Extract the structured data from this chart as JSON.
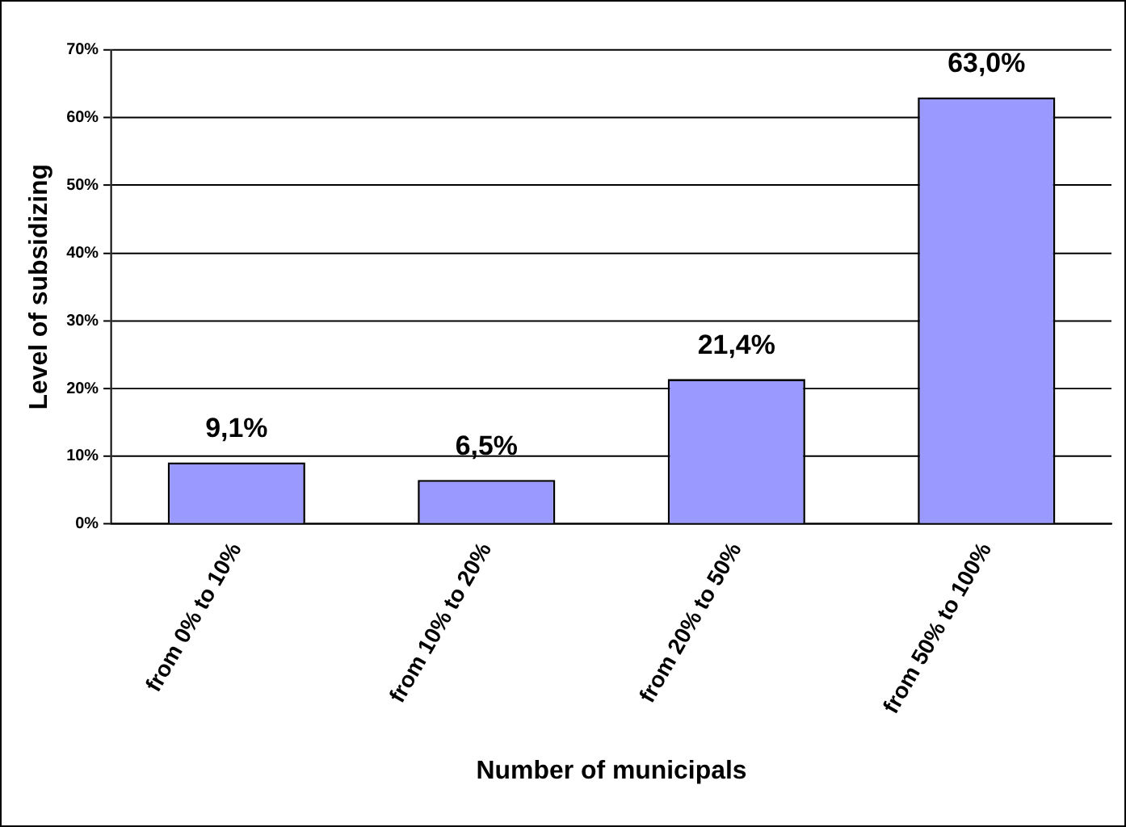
{
  "chart_data": {
    "type": "bar",
    "xlabel": "Number of municipals",
    "ylabel": "Level of subsidizing",
    "categories": [
      "from 0% to 10%",
      "from 10% to 20%",
      "from 20% to 50%",
      "from 50% to 100%"
    ],
    "values": [
      9.1,
      6.5,
      21.4,
      63.0
    ],
    "color": "#9999ff",
    "value_labels": [
      "9,1%",
      "6,5%",
      "21,4%",
      "63,0%"
    ],
    "ylim": [
      0,
      70
    ],
    "yticks": [
      {
        "value": 0,
        "label": "0%"
      },
      {
        "value": 10,
        "label": "10%"
      },
      {
        "value": 20,
        "label": "20%"
      },
      {
        "value": 30,
        "label": "30%"
      },
      {
        "value": 40,
        "label": "40%"
      },
      {
        "value": 50,
        "label": "50%"
      },
      {
        "value": 60,
        "label": "60%"
      },
      {
        "value": 70,
        "label": "70%"
      }
    ],
    "grid": "y",
    "legend": false
  }
}
